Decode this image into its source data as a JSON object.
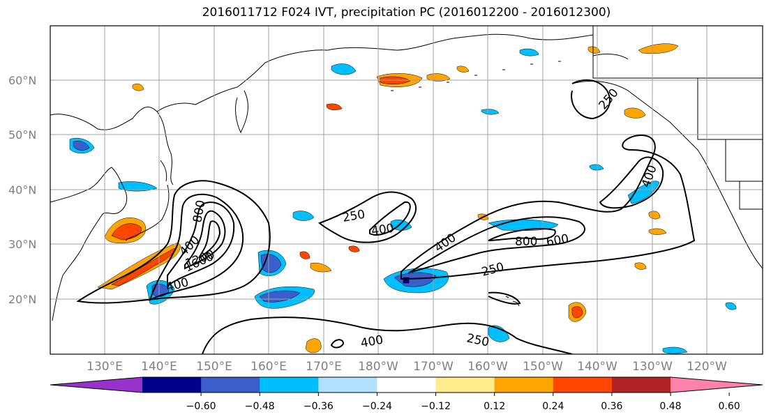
{
  "title": "2016011712 F024 IVT, precipitation PC (2016012200 - 2016012300)",
  "lat_labels": [
    "20°N",
    "30°N",
    "40°N",
    "50°N",
    "60°N"
  ],
  "lon_labels": [
    "130°E",
    "140°E",
    "150°E",
    "160°E",
    "170°E",
    "180°W",
    "170°W",
    "160°W",
    "150°W",
    "140°W",
    "130°W",
    "120°W"
  ],
  "colorbar": {
    "colors": [
      "#9932cc",
      "#00008b",
      "#3a5fcd",
      "#00bfff",
      "#b0e2ff",
      "#ffffff",
      "#ffec8b",
      "#ffa500",
      "#ff4500",
      "#b22222",
      "#ff82ab"
    ],
    "tick_labels": [
      "-0.60",
      "-0.48",
      "-0.36",
      "-0.24",
      "-0.12",
      "0.12",
      "0.24",
      "0.36",
      "0.48",
      "0.60"
    ]
  },
  "contour_labels": {
    "c250_a": "250",
    "c400_a": "400",
    "c400_b": "400",
    "c800_a": "800",
    "c600_a": "600",
    "c250_b": "250",
    "c250_c": "250",
    "c400_c": "400",
    "c400_d": "400",
    "c1200": "1200",
    "c1600": "1600",
    "c800_b": "800",
    "c400_e": "400",
    "c250_d": "250",
    "c400_f": "400"
  }
}
